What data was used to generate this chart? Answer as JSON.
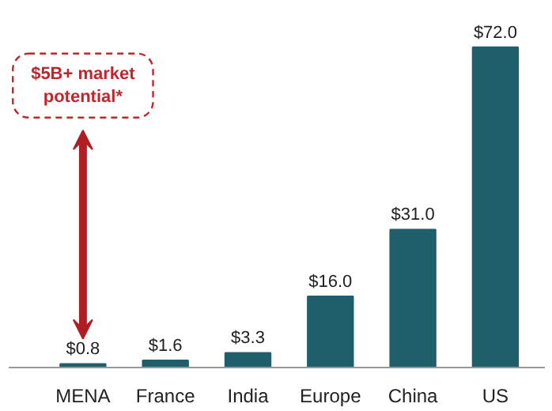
{
  "chart_data": {
    "type": "bar",
    "categories": [
      "MENA",
      "France",
      "India",
      "Europe",
      "China",
      "US"
    ],
    "values": [
      0.8,
      1.6,
      3.3,
      16.0,
      31.0,
      72.0
    ],
    "value_labels": [
      "$0.8",
      "$1.6",
      "$3.3",
      "$16.0",
      "$31.0",
      "$72.0"
    ],
    "color": "#1f5f6b",
    "annotations": [
      "$5B+ market potential*"
    ],
    "grid": false
  }
}
